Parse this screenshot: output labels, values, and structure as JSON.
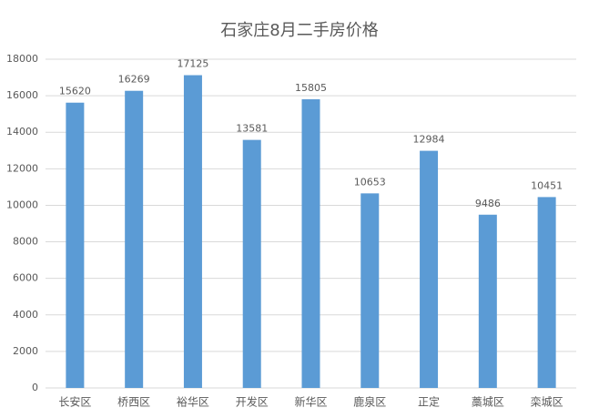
{
  "chart_data": {
    "type": "bar",
    "title": "石家庄8月二手房价格",
    "categories": [
      "长安区",
      "桥西区",
      "裕华区",
      "开发区",
      "新华区",
      "鹿泉区",
      "正定",
      "藁城区",
      "栾城区"
    ],
    "values": [
      15620,
      16269,
      17125,
      13581,
      15805,
      10653,
      12984,
      9486,
      10451
    ],
    "color": "#5b9bd5",
    "ylim": [
      0,
      18000
    ],
    "yticks": [
      0,
      2000,
      4000,
      6000,
      8000,
      10000,
      12000,
      14000,
      16000,
      18000
    ],
    "grid": true
  }
}
